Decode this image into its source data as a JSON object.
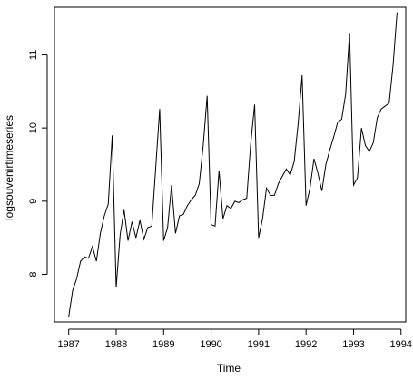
{
  "chart_data": {
    "type": "line",
    "title": "",
    "xlabel": "Time",
    "ylabel": "logsouvenirtimeseries",
    "xlim": [
      1986.7,
      1994.1
    ],
    "ylim": [
      7.35,
      11.65
    ],
    "xticks": [
      1987,
      1988,
      1989,
      1990,
      1991,
      1992,
      1993,
      1994
    ],
    "yticks": [
      8,
      9,
      10,
      11
    ],
    "grid": false,
    "series": [
      {
        "name": "",
        "color": "#000000",
        "start": 1987,
        "frequency": 12,
        "values": [
          7.42,
          7.78,
          7.94,
          8.18,
          8.24,
          8.22,
          8.38,
          8.18,
          8.56,
          8.8,
          8.96,
          9.9,
          7.82,
          8.54,
          8.88,
          8.46,
          8.72,
          8.5,
          8.74,
          8.48,
          8.64,
          8.66,
          9.46,
          10.26,
          8.46,
          8.64,
          9.22,
          8.56,
          8.8,
          8.82,
          8.94,
          9.02,
          9.08,
          9.24,
          9.76,
          10.44,
          8.68,
          8.66,
          9.42,
          8.76,
          8.94,
          8.9,
          9.0,
          8.98,
          9.02,
          9.04,
          9.78,
          10.32,
          8.5,
          8.76,
          9.18,
          9.08,
          9.08,
          9.24,
          9.34,
          9.44,
          9.36,
          9.54,
          10.06,
          10.72,
          8.94,
          9.18,
          9.58,
          9.38,
          9.14,
          9.5,
          9.7,
          9.88,
          10.08,
          10.12,
          10.46,
          11.3,
          9.22,
          9.32,
          10.0,
          9.76,
          9.68,
          9.8,
          10.14,
          10.26,
          10.3,
          10.34,
          10.86,
          11.58
        ]
      }
    ]
  }
}
